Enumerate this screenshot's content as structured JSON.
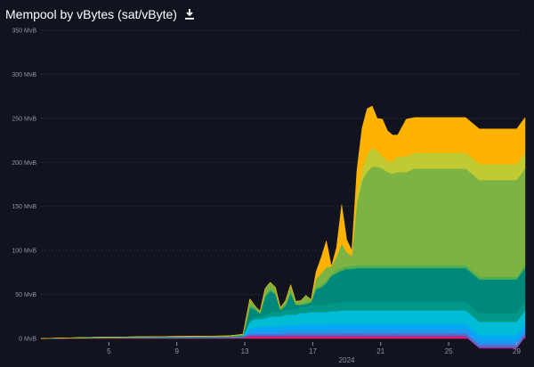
{
  "title": "Mempool by vBytes (sat/vByte)",
  "icons": {
    "download": "download-icon"
  },
  "colors": {
    "background": "#11131f",
    "grid": "#252a3a",
    "axis_text": "#8f94a6"
  },
  "chart_data": {
    "type": "area",
    "stacked": true,
    "ylim": [
      0,
      350
    ],
    "yticks": [
      0,
      50,
      100,
      150,
      200,
      250,
      300,
      350
    ],
    "ytick_labels": [
      "0 MvB",
      "50 MvB",
      "100 MvB",
      "150 MvB",
      "200 MvB",
      "250 MvB",
      "300 MvB",
      "350 MvB"
    ],
    "xlim": [
      1,
      29.5
    ],
    "xticks": [
      5,
      9,
      13,
      17,
      21,
      25,
      29
    ],
    "xtick_labels": [
      "5",
      "9",
      "13",
      "17",
      "21",
      "25",
      "29"
    ],
    "xlabel": "2024",
    "grid": true,
    "x": [
      1,
      4,
      8,
      12,
      12.9,
      13.3,
      13.6,
      13.9,
      14.2,
      14.5,
      14.8,
      15.1,
      15.4,
      15.7,
      16.0,
      16.3,
      16.6,
      16.9,
      17.2,
      17.5,
      17.8,
      18.1,
      18.4,
      18.7,
      19.0,
      19.3,
      19.6,
      19.9,
      20.2,
      20.5,
      20.8,
      21.1,
      21.4,
      21.7,
      22.0,
      22.5,
      23,
      24,
      25,
      26,
      26.8,
      27.2,
      28,
      29,
      29.5
    ],
    "series": [
      {
        "color": "#e91e63",
        "values": [
          0,
          0.3,
          0.5,
          0.8,
          1,
          2,
          2,
          2,
          2,
          2,
          2,
          2,
          2,
          2,
          2,
          2,
          2,
          2,
          2,
          2,
          2,
          2,
          2,
          2,
          2,
          2,
          2,
          2,
          2,
          2,
          2,
          2,
          2,
          2,
          2,
          2,
          2,
          2,
          2,
          2,
          -11,
          -11,
          -11,
          -11,
          2
        ]
      },
      {
        "color": "#9c27b0",
        "values": [
          0,
          0.1,
          0.2,
          0.2,
          0.3,
          1,
          1,
          1,
          1,
          1,
          1,
          1,
          1,
          1,
          1,
          1,
          1,
          1,
          1,
          1,
          1,
          1,
          1,
          1,
          1,
          1,
          1,
          1,
          1,
          1,
          1,
          1,
          1,
          1,
          1,
          1,
          1,
          1,
          1,
          1,
          1,
          1,
          1,
          1,
          1
        ]
      },
      {
        "color": "#5c6bc0",
        "values": [
          0,
          0.1,
          0.2,
          0.2,
          0.3,
          2,
          2,
          2,
          2,
          2,
          2,
          2,
          3,
          3,
          3,
          3,
          3,
          3,
          3,
          3,
          3,
          3,
          3,
          3,
          3,
          3,
          3,
          3,
          3,
          3,
          3,
          3,
          3,
          3,
          3,
          3,
          3,
          3,
          3,
          3,
          3,
          3,
          3,
          3,
          3
        ]
      },
      {
        "color": "#2196f3",
        "values": [
          0,
          0.1,
          0.1,
          0.2,
          0.3,
          3,
          4,
          4,
          4,
          4,
          4,
          4,
          4,
          4,
          4,
          4,
          4,
          4,
          4,
          4,
          4,
          5,
          5,
          5,
          5,
          5,
          5,
          5,
          5,
          5,
          5,
          5,
          5,
          5,
          5,
          5,
          5,
          5,
          5,
          5,
          5,
          5,
          5,
          5,
          5
        ]
      },
      {
        "color": "#03a9f4",
        "values": [
          0,
          0.1,
          0.1,
          0.2,
          0.3,
          3,
          4,
          4,
          4,
          5,
          5,
          5,
          5,
          5,
          5,
          6,
          6,
          6,
          6,
          6,
          6,
          6,
          6,
          6,
          6,
          6,
          6,
          6,
          6,
          6,
          6,
          6,
          6,
          6,
          6,
          6,
          6,
          6,
          6,
          6,
          6,
          6,
          6,
          6,
          6
        ]
      },
      {
        "color": "#00bcd4",
        "values": [
          0,
          0.1,
          0.2,
          0.2,
          0.3,
          8,
          9,
          9,
          10,
          11,
          11,
          11,
          12,
          12,
          12,
          13,
          13,
          14,
          14,
          14,
          14,
          14,
          14,
          15,
          15,
          15,
          15,
          15,
          15,
          15,
          15,
          15,
          15,
          15,
          15,
          15,
          15,
          15,
          15,
          15,
          15,
          15,
          15,
          15,
          15
        ]
      },
      {
        "color": "#009688",
        "values": [
          0,
          0.1,
          0.2,
          0.2,
          0.3,
          2,
          3,
          3,
          4,
          5,
          5,
          5,
          6,
          6,
          6,
          7,
          7,
          8,
          8,
          8,
          8,
          9,
          9,
          9,
          10,
          10,
          10,
          10,
          10,
          10,
          10,
          10,
          10,
          10,
          10,
          10,
          10,
          10,
          10,
          10,
          10,
          10,
          10,
          10,
          10
        ]
      },
      {
        "color": "#00897b",
        "values": [
          0,
          0.1,
          0.2,
          0.2,
          0.5,
          14,
          8,
          3,
          20,
          24,
          20,
          2,
          4,
          18,
          5,
          2,
          3,
          3,
          18,
          20,
          25,
          31,
          34,
          36,
          37,
          37,
          38,
          38,
          38,
          38,
          38,
          38,
          38,
          38,
          38,
          38,
          38,
          38,
          38,
          38,
          38,
          38,
          38,
          38,
          38
        ]
      },
      {
        "color": "#4caf50",
        "values": [
          0,
          0.1,
          0.2,
          0.3,
          0.5,
          2,
          2,
          1,
          2,
          2,
          2,
          1,
          2,
          2,
          1,
          1,
          2,
          1,
          2,
          2,
          2,
          2,
          3,
          3,
          3,
          3,
          3,
          3,
          3,
          3,
          3,
          3,
          3,
          3,
          3,
          3,
          3,
          3,
          3,
          3,
          3,
          3,
          3,
          3,
          3
        ]
      },
      {
        "color": "#7cb342",
        "values": [
          0,
          0.2,
          0.3,
          0.4,
          1,
          8,
          2,
          2,
          8,
          8,
          6,
          2,
          4,
          8,
          3,
          4,
          8,
          2,
          10,
          14,
          16,
          9,
          16,
          28,
          16,
          12,
          70,
          96,
          106,
          112,
          112,
          110,
          106,
          104,
          106,
          106,
          110,
          110,
          110,
          110,
          110,
          110,
          110,
          110,
          110
        ]
      },
      {
        "color": "#c0ca33",
        "values": [
          0,
          0,
          0,
          0,
          0,
          0,
          0,
          0,
          0,
          0,
          0,
          0,
          0,
          0,
          0,
          0,
          0,
          0,
          0,
          0,
          0,
          0,
          0,
          0,
          0,
          0,
          10,
          12,
          20,
          22,
          18,
          14,
          12,
          14,
          18,
          18,
          18,
          18,
          18,
          18,
          18,
          18,
          18,
          18,
          18
        ]
      },
      {
        "color": "#ffb300",
        "values": [
          0,
          0,
          0,
          0,
          0,
          0,
          0,
          0,
          0,
          0,
          0,
          0,
          0,
          0,
          0,
          0,
          0,
          0,
          8,
          18,
          30,
          0,
          10,
          44,
          14,
          6,
          28,
          48,
          52,
          47,
          37,
          42,
          35,
          30,
          24,
          42,
          40,
          40,
          40,
          40,
          40,
          40,
          40,
          40,
          40
        ]
      }
    ]
  }
}
